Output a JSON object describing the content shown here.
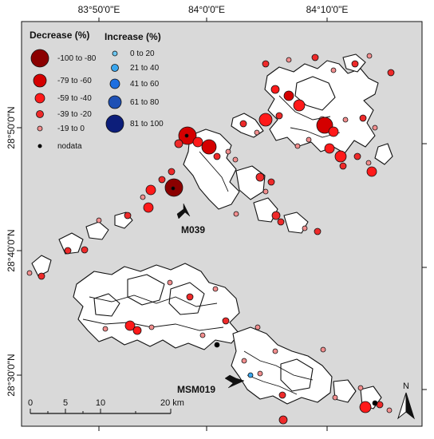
{
  "coordinates": {
    "top": [
      "83°50'0\"E",
      "84°0'0\"E",
      "84°10'0\"E"
    ],
    "left": [
      "28°50'0\"N",
      "28°40'0\"N",
      "28°30'0\"N"
    ]
  },
  "legend": {
    "decrease_title": "Decrease (%)",
    "increase_title": "Increase (%)",
    "decrease_classes": [
      {
        "label": "-100 to -80",
        "color": "#8b0000"
      },
      {
        "label": "-79 to -60",
        "color": "#d40000"
      },
      {
        "label": "-59 to -40",
        "color": "#ff1a1a"
      },
      {
        "label": "-39 to -20",
        "color": "#ee2a2a"
      },
      {
        "label": "-19 to 0",
        "color": "#f28e8e"
      }
    ],
    "increase_classes": [
      {
        "label": "0 to 20",
        "color": "#6cc6f0"
      },
      {
        "label": "21 to 40",
        "color": "#3aa6ee"
      },
      {
        "label": "41 to 60",
        "color": "#1e6fe0"
      },
      {
        "label": "61 to 80",
        "color": "#1e50b4"
      },
      {
        "label": "81 to 100",
        "color": "#0c1e7a"
      }
    ],
    "nodata_label": "nodata"
  },
  "callouts": {
    "m039": "M039",
    "msm019": "MSM019"
  },
  "scale_bar": {
    "ticks": [
      "0",
      "5",
      "10",
      "20 km"
    ]
  },
  "north_arrow": {
    "label": "N"
  },
  "colors": {
    "map_background": "#d9d9d9",
    "glacier_fill": "#ffffff",
    "outline": "#000000"
  }
}
